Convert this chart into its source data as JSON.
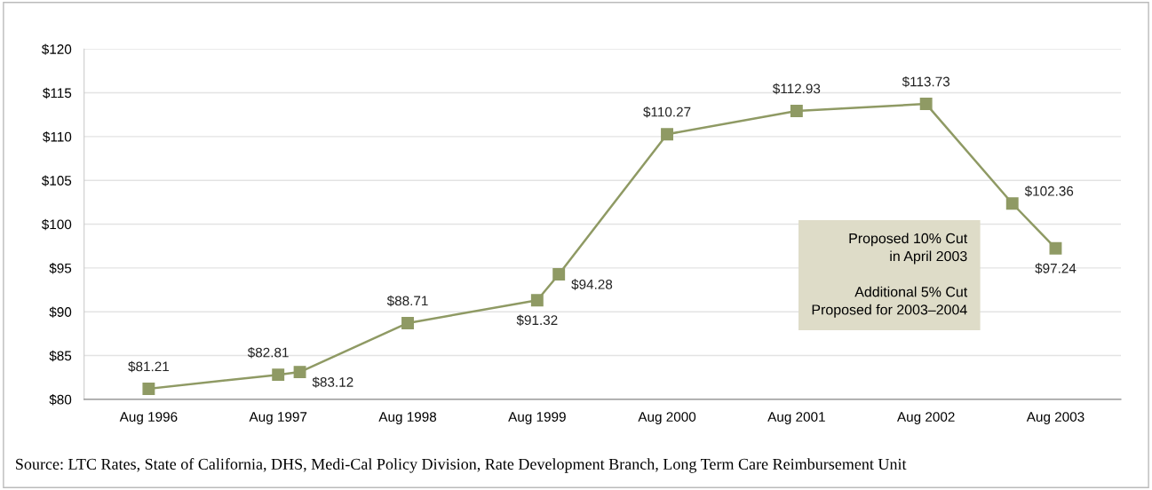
{
  "chart_data": {
    "type": "line",
    "x": [
      "1996-08",
      "1997-08",
      "1997-10",
      "1998-08",
      "1999-08",
      "1999-10",
      "2000-08",
      "2001-08",
      "2002-08",
      "2003-04",
      "2003-08"
    ],
    "series": [
      {
        "color": "#8f9a64",
        "values": [
          81.21,
          82.81,
          83.12,
          88.71,
          91.32,
          94.28,
          110.27,
          112.93,
          113.73,
          102.36,
          97.24
        ],
        "value_labels": [
          "$81.21",
          "$82.81",
          "$83.12",
          "$88.71",
          "$91.32",
          "$94.28",
          "$110.27",
          "$112.93",
          "$113.73",
          "$102.36",
          "$97.24"
        ]
      }
    ],
    "xlim": [
      "1996-02",
      "2004-02"
    ],
    "xticks": [
      {
        "value": "1996-08",
        "label": "Aug 1996"
      },
      {
        "value": "1997-08",
        "label": "Aug 1997"
      },
      {
        "value": "1998-08",
        "label": "Aug 1998"
      },
      {
        "value": "1999-08",
        "label": "Aug 1999"
      },
      {
        "value": "2000-08",
        "label": "Aug 2000"
      },
      {
        "value": "2001-08",
        "label": "Aug 2001"
      },
      {
        "value": "2002-08",
        "label": "Aug 2002"
      },
      {
        "value": "2003-08",
        "label": "Aug 2003"
      }
    ],
    "ylim": [
      80,
      120
    ],
    "yticks": [
      {
        "value": 80,
        "label": "$80"
      },
      {
        "value": 85,
        "label": "$85"
      },
      {
        "value": 90,
        "label": "$90"
      },
      {
        "value": 95,
        "label": "$95"
      },
      {
        "value": 100,
        "label": "$100"
      },
      {
        "value": 105,
        "label": "$105"
      },
      {
        "value": 110,
        "label": "$110"
      },
      {
        "value": 115,
        "label": "$115"
      },
      {
        "value": 120,
        "label": "$120"
      }
    ],
    "grid": "y",
    "marker": "square",
    "line_style": "solid",
    "annotations": [
      "Proposed 10% Cut\nin April 2003\n\nAdditional 5% Cut\nProposed for 2003–2004",
      "Source: LTC Rates, State of California, DHS, Medi-Cal Policy Division, Rate Development Branch, Long Term Care Reimbursement Unit"
    ]
  }
}
